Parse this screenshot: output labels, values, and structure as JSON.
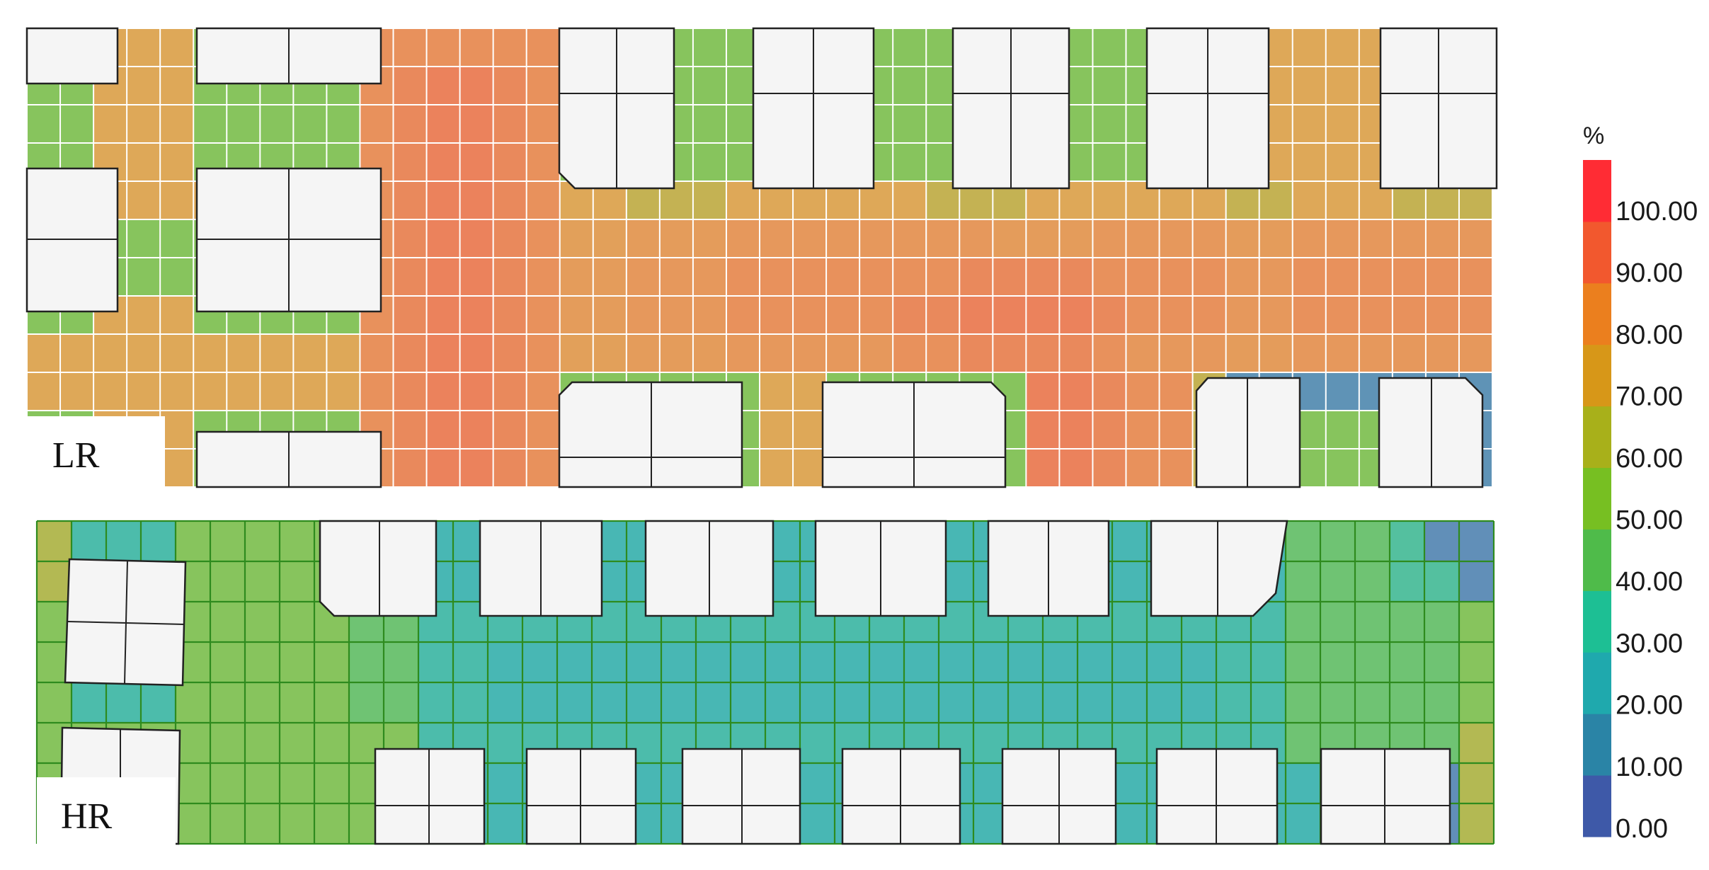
{
  "chart_data": [
    {
      "type": "heatmap",
      "panel_label": "LR",
      "rows": 12,
      "cols": 44,
      "cell_values_percent": [
        [
          50,
          50,
          72,
          72,
          72,
          50,
          50,
          50,
          50,
          50,
          82,
          82,
          82,
          82,
          82,
          82,
          50,
          50,
          50,
          50,
          50,
          50,
          50,
          72,
          72,
          50,
          50,
          50,
          50,
          50,
          50,
          50,
          50,
          50,
          10,
          72,
          72,
          72,
          72,
          72,
          72,
          72,
          72,
          72
        ],
        [
          50,
          50,
          72,
          72,
          72,
          50,
          50,
          50,
          50,
          50,
          82,
          84,
          86,
          86,
          84,
          82,
          50,
          50,
          50,
          50,
          50,
          50,
          50,
          72,
          72,
          50,
          50,
          50,
          50,
          50,
          50,
          50,
          50,
          50,
          10,
          72,
          72,
          72,
          72,
          72,
          72,
          72,
          72,
          72
        ],
        [
          50,
          50,
          72,
          72,
          72,
          50,
          50,
          50,
          50,
          50,
          82,
          84,
          86,
          86,
          84,
          82,
          50,
          50,
          50,
          50,
          50,
          50,
          50,
          72,
          72,
          50,
          50,
          50,
          50,
          50,
          50,
          50,
          50,
          50,
          10,
          72,
          72,
          72,
          72,
          72,
          72,
          72,
          72,
          72
        ],
        [
          50,
          50,
          72,
          72,
          72,
          50,
          50,
          50,
          50,
          50,
          82,
          84,
          86,
          86,
          84,
          82,
          50,
          50,
          50,
          50,
          50,
          50,
          50,
          72,
          72,
          50,
          50,
          50,
          50,
          50,
          50,
          50,
          50,
          50,
          10,
          72,
          72,
          72,
          72,
          72,
          72,
          72,
          72,
          72
        ],
        [
          72,
          72,
          72,
          72,
          72,
          72,
          72,
          72,
          72,
          72,
          82,
          84,
          86,
          86,
          84,
          82,
          72,
          72,
          66,
          66,
          66,
          72,
          72,
          72,
          72,
          72,
          72,
          66,
          66,
          66,
          72,
          72,
          72,
          72,
          72,
          72,
          66,
          66,
          72,
          72,
          72,
          66,
          66,
          66
        ],
        [
          50,
          50,
          50,
          50,
          50,
          50,
          50,
          50,
          50,
          50,
          82,
          84,
          86,
          86,
          84,
          82,
          76,
          76,
          78,
          78,
          78,
          80,
          80,
          80,
          80,
          80,
          80,
          80,
          80,
          78,
          78,
          78,
          80,
          80,
          80,
          80,
          78,
          78,
          80,
          80,
          80,
          80,
          80,
          80
        ],
        [
          50,
          50,
          50,
          50,
          50,
          50,
          50,
          50,
          50,
          50,
          82,
          84,
          86,
          86,
          84,
          82,
          78,
          78,
          80,
          80,
          80,
          82,
          82,
          82,
          82,
          82,
          82,
          82,
          84,
          84,
          84,
          84,
          82,
          82,
          82,
          82,
          80,
          80,
          82,
          82,
          82,
          82,
          82,
          82
        ],
        [
          50,
          50,
          72,
          72,
          72,
          50,
          50,
          50,
          50,
          50,
          82,
          84,
          86,
          86,
          84,
          82,
          78,
          78,
          80,
          80,
          80,
          82,
          82,
          82,
          82,
          82,
          84,
          84,
          86,
          86,
          86,
          86,
          84,
          82,
          82,
          82,
          80,
          80,
          82,
          82,
          82,
          82,
          82,
          82
        ],
        [
          72,
          72,
          72,
          72,
          72,
          72,
          72,
          72,
          72,
          72,
          82,
          84,
          86,
          86,
          84,
          82,
          76,
          76,
          78,
          78,
          78,
          80,
          80,
          80,
          80,
          80,
          82,
          82,
          84,
          84,
          84,
          84,
          82,
          80,
          80,
          80,
          78,
          78,
          80,
          80,
          80,
          80,
          80,
          80
        ],
        [
          72,
          72,
          72,
          72,
          72,
          72,
          72,
          72,
          72,
          72,
          82,
          84,
          86,
          86,
          84,
          82,
          50,
          50,
          50,
          50,
          50,
          50,
          72,
          72,
          50,
          50,
          50,
          50,
          50,
          50,
          86,
          86,
          84,
          82,
          82,
          66,
          10,
          10,
          10,
          10,
          10,
          10,
          10,
          10
        ],
        [
          50,
          50,
          72,
          72,
          72,
          50,
          50,
          50,
          50,
          50,
          82,
          84,
          86,
          86,
          84,
          82,
          50,
          50,
          50,
          50,
          50,
          50,
          72,
          72,
          50,
          50,
          50,
          50,
          50,
          50,
          86,
          86,
          84,
          82,
          82,
          66,
          50,
          50,
          50,
          50,
          50,
          50,
          10,
          10
        ],
        [
          50,
          50,
          72,
          72,
          72,
          50,
          50,
          50,
          50,
          50,
          82,
          84,
          86,
          86,
          84,
          82,
          50,
          50,
          50,
          50,
          50,
          50,
          72,
          72,
          50,
          50,
          50,
          50,
          50,
          50,
          86,
          86,
          84,
          82,
          82,
          66,
          50,
          50,
          50,
          50,
          50,
          50,
          10,
          10
        ]
      ]
    },
    {
      "type": "heatmap",
      "panel_label": "HR",
      "rows": 8,
      "cols": 42,
      "cell_values_percent": [
        [
          62,
          28,
          28,
          28,
          50,
          50,
          50,
          50,
          50,
          8,
          24,
          24,
          24,
          24,
          24,
          24,
          24,
          24,
          24,
          8,
          24,
          24,
          24,
          24,
          24,
          24,
          24,
          24,
          24,
          24,
          24,
          24,
          24,
          24,
          24,
          24,
          42,
          42,
          42,
          32,
          8,
          8
        ],
        [
          62,
          28,
          28,
          28,
          50,
          50,
          50,
          50,
          50,
          8,
          8,
          24,
          24,
          24,
          24,
          24,
          24,
          24,
          24,
          8,
          24,
          24,
          24,
          24,
          24,
          24,
          24,
          24,
          24,
          24,
          24,
          24,
          24,
          24,
          24,
          24,
          42,
          42,
          42,
          32,
          32,
          8
        ],
        [
          50,
          50,
          50,
          50,
          50,
          50,
          50,
          50,
          50,
          42,
          42,
          28,
          28,
          28,
          28,
          28,
          28,
          28,
          28,
          28,
          28,
          28,
          28,
          28,
          28,
          28,
          28,
          28,
          28,
          28,
          28,
          28,
          28,
          28,
          28,
          28,
          42,
          42,
          42,
          42,
          42,
          50
        ],
        [
          50,
          8,
          8,
          8,
          50,
          50,
          50,
          50,
          50,
          42,
          42,
          28,
          28,
          24,
          24,
          24,
          24,
          24,
          24,
          24,
          24,
          24,
          24,
          24,
          24,
          24,
          24,
          24,
          24,
          24,
          24,
          24,
          24,
          24,
          28,
          28,
          42,
          42,
          42,
          42,
          42,
          50
        ],
        [
          50,
          28,
          28,
          28,
          50,
          50,
          50,
          50,
          50,
          42,
          42,
          28,
          28,
          24,
          24,
          24,
          24,
          24,
          24,
          24,
          24,
          24,
          24,
          24,
          24,
          24,
          24,
          24,
          24,
          24,
          24,
          24,
          24,
          24,
          28,
          28,
          42,
          42,
          42,
          42,
          42,
          50
        ],
        [
          50,
          50,
          50,
          50,
          50,
          50,
          50,
          50,
          50,
          50,
          50,
          28,
          28,
          28,
          28,
          28,
          28,
          28,
          28,
          28,
          28,
          28,
          28,
          28,
          28,
          28,
          28,
          28,
          28,
          28,
          28,
          28,
          28,
          28,
          28,
          28,
          42,
          42,
          42,
          42,
          42,
          62
        ],
        [
          50,
          50,
          50,
          50,
          50,
          50,
          50,
          50,
          50,
          50,
          50,
          8,
          24,
          24,
          24,
          24,
          24,
          24,
          24,
          24,
          24,
          24,
          24,
          24,
          24,
          24,
          24,
          24,
          24,
          24,
          24,
          24,
          24,
          24,
          24,
          24,
          24,
          24,
          24,
          24,
          8,
          62
        ],
        [
          50,
          50,
          50,
          50,
          50,
          50,
          50,
          50,
          50,
          50,
          50,
          8,
          24,
          24,
          24,
          24,
          24,
          24,
          24,
          24,
          24,
          24,
          24,
          24,
          24,
          24,
          24,
          24,
          24,
          24,
          24,
          24,
          24,
          24,
          24,
          24,
          24,
          24,
          24,
          24,
          8,
          62
        ]
      ]
    }
  ],
  "colorbar": {
    "unit": "%",
    "tick_labels": [
      "100.00",
      "90.00",
      "80.00",
      "70.00",
      "60.00",
      "50.00",
      "40.00",
      "30.00",
      "20.00",
      "10.00",
      "0.00"
    ],
    "band_colors": [
      "#3e59a8",
      "#2a84a6",
      "#1fa9ad",
      "#1dbf94",
      "#4fbb4a",
      "#77bf22",
      "#a8b01a",
      "#d79718",
      "#eb7f1e",
      "#f2582e",
      "#ff2c34"
    ]
  },
  "colors": {
    "lr_grid_line": "#ffffff",
    "hr_grid_line": "#2e8b1e",
    "building_fill": "#f5f5f5",
    "building_stroke": "#222222"
  },
  "panels": {
    "lr_label": "LR",
    "hr_label": "HR"
  }
}
